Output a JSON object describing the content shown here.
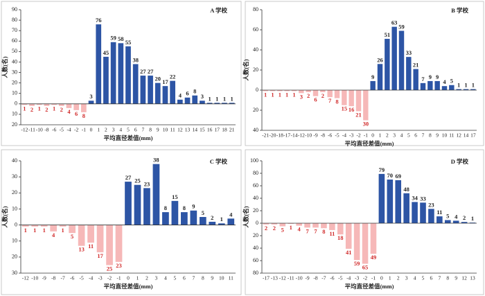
{
  "chart_data": [
    {
      "type": "bar",
      "title": "A 学校",
      "xlabel": "平均直径差值(mm)",
      "ylabel": "人数(名)",
      "categories": [
        -12,
        -11,
        -10,
        -8,
        -6,
        -5,
        -4,
        -2,
        -1,
        0,
        1,
        2,
        3,
        4,
        5,
        6,
        7,
        8,
        9,
        10,
        11,
        12,
        13,
        14,
        15,
        16,
        17,
        18,
        21
      ],
      "values": [
        -1,
        -2,
        -1,
        -2,
        -1,
        -2,
        -4,
        -6,
        -8,
        3,
        76,
        45,
        59,
        58,
        55,
        38,
        27,
        27,
        20,
        17,
        22,
        4,
        6,
        8,
        3,
        1,
        1,
        1,
        1
      ],
      "value_labels": [
        "1",
        "2",
        "1",
        "2",
        "1",
        "2",
        "4",
        "6",
        "8",
        "3",
        "76",
        "45",
        "59",
        "58",
        "55",
        "38",
        "27",
        "27",
        "20",
        "17",
        "22",
        "4",
        "6",
        "8",
        "3",
        "1",
        "1",
        "1",
        "1"
      ],
      "colors": {
        "positive": "#2d55a5",
        "negative": "#f6b8b8",
        "negative_label": "#d12a2a",
        "positive_label": "#222222"
      },
      "ylim": [
        -20,
        90
      ],
      "yticks": [
        {
          "value": -20,
          "label": "20"
        },
        {
          "value": -10,
          "label": "10"
        },
        0,
        10,
        20,
        30,
        40,
        50,
        60,
        70,
        80,
        90
      ]
    },
    {
      "type": "bar",
      "title": "B 学校",
      "xlabel": "平均直径差值(mm)",
      "ylabel": "人数(名)",
      "categories": [
        -21,
        -20,
        -18,
        -17,
        -14,
        -12,
        -10,
        -9,
        -8,
        -6,
        -5,
        -4,
        -3,
        -2,
        -1,
        0,
        1,
        2,
        3,
        4,
        5,
        6,
        7,
        8,
        9,
        10,
        11,
        12,
        14,
        17
      ],
      "values": [
        -1,
        -1,
        -1,
        -1,
        -1,
        -3,
        -2,
        -6,
        -2,
        -7,
        -8,
        -15,
        -16,
        -21,
        -30,
        9,
        26,
        51,
        63,
        59,
        33,
        21,
        7,
        9,
        9,
        4,
        5,
        1,
        1,
        1
      ],
      "value_labels": [
        "1",
        "1",
        "1",
        "1",
        "1",
        "3",
        "2",
        "6",
        "2",
        "7",
        "8",
        "15",
        "16",
        "21",
        "30",
        "9",
        "26",
        "51",
        "63",
        "59",
        "33",
        "21",
        "7",
        "9",
        "9",
        "4",
        "5",
        "1",
        "1",
        "1"
      ],
      "colors": {
        "positive": "#2d55a5",
        "negative": "#f6b8b8",
        "negative_label": "#d12a2a",
        "positive_label": "#222222"
      },
      "ylim": [
        -40,
        80
      ],
      "yticks": [
        {
          "value": -40,
          "label": "40"
        },
        {
          "value": -20,
          "label": "20"
        },
        0,
        20,
        40,
        60,
        80
      ]
    },
    {
      "type": "bar",
      "title": "C 学校",
      "xlabel": "平均直径差值(mm)",
      "ylabel": "人数(名)",
      "categories": [
        -12,
        -10,
        -9,
        -8,
        -7,
        -6,
        -5,
        -4,
        -3,
        -2,
        -1,
        0,
        1,
        2,
        3,
        4,
        5,
        6,
        7,
        8,
        9,
        10,
        11
      ],
      "values": [
        -1,
        -1,
        -1,
        -4,
        -1,
        -5,
        -13,
        -11,
        -17,
        -25,
        -23,
        27,
        25,
        23,
        38,
        8,
        15,
        8,
        9,
        5,
        2,
        1,
        4
      ],
      "value_labels": [
        "1",
        "1",
        "1",
        "4",
        "1",
        "5",
        "13",
        "11",
        "17",
        "25",
        "23",
        "27",
        "25",
        "23",
        "38",
        "8",
        "15",
        "8",
        "9",
        "5",
        "2",
        "1",
        "4"
      ],
      "colors": {
        "positive": "#2d55a5",
        "negative": "#f6b8b8",
        "negative_label": "#d12a2a",
        "positive_label": "#222222"
      },
      "ylim": [
        -30,
        40
      ],
      "yticks": [
        {
          "value": -30,
          "label": "30"
        },
        {
          "value": -20,
          "label": "20"
        },
        {
          "value": -10,
          "label": "10"
        },
        0,
        10,
        20,
        30,
        40
      ]
    },
    {
      "type": "bar",
      "title": "D 学校",
      "xlabel": "平均直径差值(mm)",
      "ylabel": "人数(名)",
      "categories": [
        -17,
        -13,
        -12,
        -11,
        -10,
        -9,
        -8,
        -7,
        -6,
        -5,
        -4,
        -3,
        -2,
        -1,
        0,
        1,
        2,
        3,
        4,
        5,
        6,
        7,
        8,
        9,
        12,
        13
      ],
      "values": [
        -2,
        -2,
        -5,
        -1,
        -4,
        -7,
        -7,
        -8,
        -11,
        -18,
        -41,
        -59,
        -65,
        -49,
        79,
        70,
        69,
        48,
        34,
        33,
        23,
        11,
        5,
        4,
        2,
        1
      ],
      "value_labels": [
        "2",
        "2",
        "5",
        "1",
        "4",
        "7",
        "7",
        "8",
        "11",
        "18",
        "41",
        "59",
        "65",
        "49",
        "79",
        "70",
        "69",
        "48",
        "34",
        "33",
        "23",
        "11",
        "5",
        "4",
        "2",
        "1"
      ],
      "colors": {
        "positive": "#2d55a5",
        "negative": "#f6b8b8",
        "negative_label": "#d12a2a",
        "positive_label": "#222222"
      },
      "ylim": [
        -80,
        100
      ],
      "yticks": [
        {
          "value": -80,
          "label": "80"
        },
        {
          "value": -60,
          "label": "60"
        },
        {
          "value": -40,
          "label": "40"
        },
        {
          "value": -20,
          "label": "20"
        },
        0,
        20,
        40,
        60,
        80,
        100
      ]
    }
  ]
}
